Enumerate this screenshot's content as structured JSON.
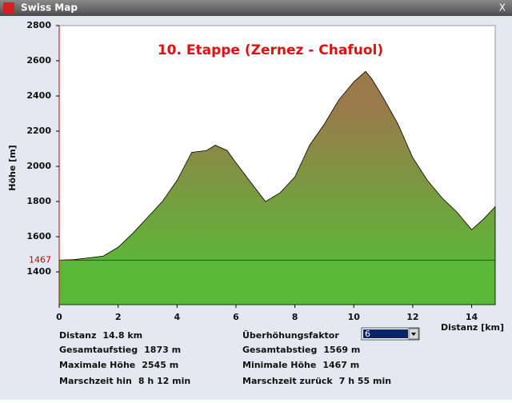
{
  "window": {
    "title": "Swiss Map",
    "close": "X"
  },
  "chart_data": {
    "type": "area",
    "title": "10. Etappe (Zernez - Chafuol)",
    "x_label": "Distanz [km]",
    "y_label": "Höhe [m]",
    "x": [
      0,
      0.5,
      1,
      1.5,
      2,
      2.5,
      3,
      3.5,
      4,
      4.5,
      5,
      5.3,
      5.7,
      6,
      6.5,
      7,
      7.5,
      8,
      8.5,
      9,
      9.5,
      10,
      10.4,
      10.6,
      11,
      11.5,
      12,
      12.5,
      13,
      13.5,
      14,
      14.4,
      14.8
    ],
    "values": [
      1467,
      1470,
      1480,
      1490,
      1540,
      1620,
      1710,
      1800,
      1920,
      2080,
      2090,
      2120,
      2090,
      2020,
      1910,
      1800,
      1850,
      1940,
      2120,
      2240,
      2380,
      2480,
      2540,
      2500,
      2390,
      2240,
      2050,
      1920,
      1820,
      1740,
      1640,
      1700,
      1770
    ],
    "reference_line": 1467,
    "reference_color": "#cc0000",
    "top_color": "#9a7a4a",
    "bottom_color": "#5ab838",
    "xlim": [
      0,
      14.8
    ],
    "ylim": [
      1214,
      2800
    ],
    "xticks": [
      0,
      2,
      4,
      6,
      8,
      10,
      12,
      14
    ],
    "yticks": [
      1400,
      1600,
      1800,
      2000,
      2200,
      2400,
      2600,
      2800
    ]
  },
  "stats": [
    [
      {
        "label": "Distanz",
        "value": "14.8 km"
      },
      {
        "label": "Überhöhungsfaktor",
        "value": "6"
      }
    ],
    [
      {
        "label": "Gesamtaufstieg",
        "value": "1873 m"
      },
      {
        "label": "Gesamtabstieg",
        "value": "1569 m"
      }
    ],
    [
      {
        "label": "Maximale Höhe",
        "value": "2545 m"
      },
      {
        "label": "Minimale Höhe",
        "value": "1467 m"
      }
    ],
    [
      {
        "label": "Marschzeit hin",
        "value": "8 h 12 min"
      },
      {
        "label": "Marschzeit zurück",
        "value": "7 h 55 min"
      }
    ]
  ]
}
